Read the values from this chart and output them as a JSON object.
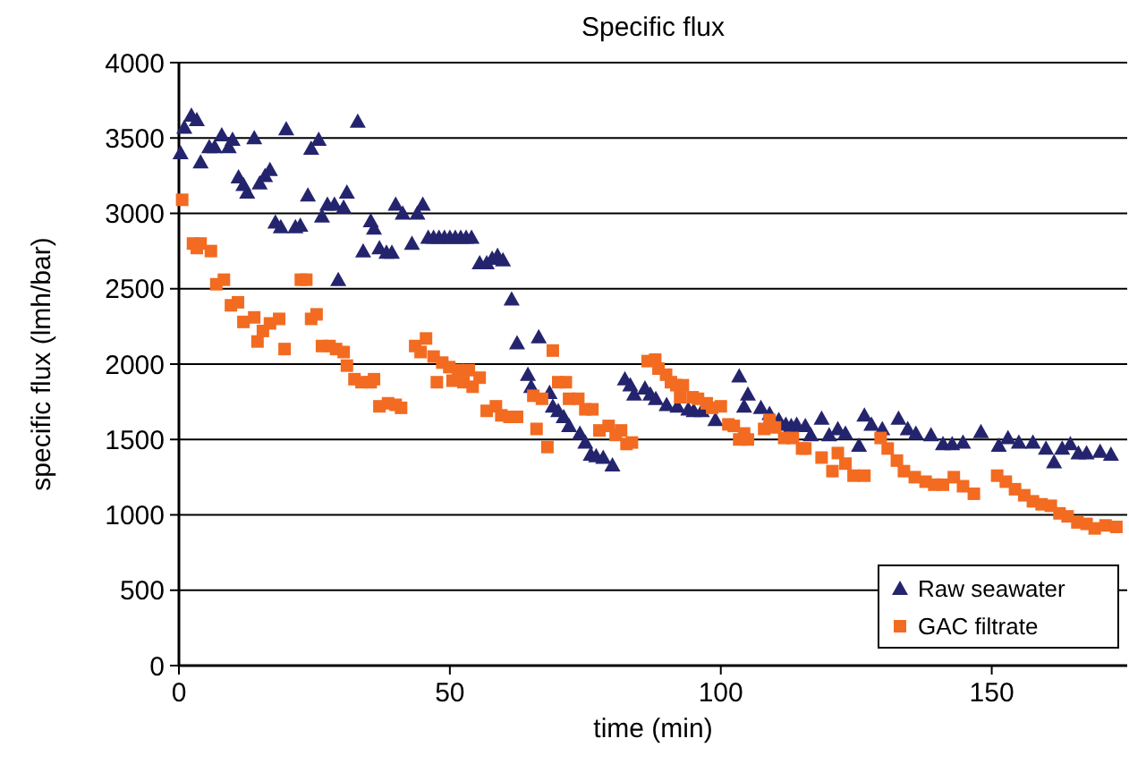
{
  "chart_data": {
    "type": "scatter",
    "title": "Specific flux",
    "xlabel": "time (min)",
    "ylabel": "specific flux (lmh/bar)",
    "xlim": [
      0,
      175
    ],
    "xticks": [
      0,
      50,
      100,
      150
    ],
    "ylim": [
      0,
      4000
    ],
    "yticks": [
      0,
      500,
      1000,
      1500,
      2000,
      2500,
      3000,
      3500,
      4000
    ],
    "grid": "y",
    "legend": "bottom right",
    "series": [
      {
        "name": "Raw seawater",
        "color": "#24246e",
        "marker": "triangle",
        "x": [
          0.3,
          1,
          2.3,
          3.3,
          4,
          5.6,
          6.6,
          7.9,
          9.2,
          9.9,
          11,
          11.9,
          12.6,
          13.9,
          14.9,
          15.9,
          16.8,
          17.8,
          18.8,
          19.8,
          21.5,
          22.4,
          23.8,
          24.4,
          25.8,
          26.4,
          27.4,
          28.7,
          29.4,
          30.4,
          31,
          33,
          34,
          35.4,
          36,
          37,
          38.3,
          39.3,
          40,
          41.3,
          43,
          44,
          45,
          46,
          47,
          48,
          49,
          50,
          51,
          52,
          53,
          54,
          55.5,
          56.8,
          57.8,
          58.8,
          59.8,
          61.4,
          62.4,
          64.4,
          65,
          66.4,
          68.4,
          69,
          70,
          71,
          72,
          74,
          75,
          76,
          77,
          78.3,
          80,
          82.3,
          83.3,
          84,
          86,
          87,
          88,
          90,
          92,
          94,
          95,
          96.5,
          99,
          103.4,
          104.3,
          105,
          107.4,
          109,
          110.7,
          112,
          113,
          114,
          115.6,
          116.6,
          118.6,
          120,
          121.6,
          123,
          125.5,
          126.5,
          127.8,
          129.8,
          132.8,
          134.5,
          136,
          138.8,
          141,
          142.7,
          144.7,
          148,
          151.3,
          153,
          155,
          157.6,
          160,
          161.5,
          163,
          164.5,
          166,
          167.5,
          170,
          172
        ],
        "values": [
          3400,
          3570,
          3650,
          3620,
          3340,
          3440,
          3440,
          3520,
          3440,
          3490,
          3240,
          3190,
          3140,
          3500,
          3200,
          3250,
          3290,
          2940,
          2910,
          3560,
          2910,
          2920,
          3120,
          3430,
          3490,
          2980,
          3060,
          3060,
          2560,
          3040,
          3140,
          3610,
          2750,
          2950,
          2900,
          2770,
          2740,
          2740,
          3060,
          3000,
          2800,
          3000,
          3060,
          2840,
          2840,
          2840,
          2840,
          2840,
          2840,
          2840,
          2840,
          2840,
          2670,
          2670,
          2700,
          2720,
          2690,
          2430,
          2140,
          1930,
          1850,
          2180,
          1810,
          1720,
          1690,
          1650,
          1590,
          1540,
          1480,
          1400,
          1390,
          1380,
          1330,
          1900,
          1860,
          1800,
          1840,
          1800,
          1770,
          1730,
          1720,
          1700,
          1690,
          1690,
          1630,
          1920,
          1720,
          1800,
          1710,
          1670,
          1630,
          1600,
          1590,
          1600,
          1590,
          1530,
          1640,
          1530,
          1570,
          1540,
          1460,
          1660,
          1600,
          1570,
          1640,
          1570,
          1540,
          1530,
          1470,
          1470,
          1480,
          1550,
          1460,
          1510,
          1480,
          1480,
          1440,
          1350,
          1440,
          1470,
          1410,
          1410,
          1420,
          1400
        ]
      },
      {
        "name": "GAC filtrate",
        "color": "#f26b21",
        "marker": "square",
        "x": [
          0.6,
          2.6,
          3.3,
          4,
          5.9,
          6.9,
          8.3,
          9.6,
          10.9,
          11.9,
          13.9,
          14.5,
          15.5,
          16.8,
          18.5,
          19.5,
          22.5,
          23.5,
          24.4,
          25.4,
          26.4,
          27.8,
          29,
          30.4,
          31,
          32.4,
          33.7,
          35.4,
          36,
          37,
          38.6,
          40,
          41,
          43.6,
          44.6,
          45.6,
          47,
          47.6,
          48.6,
          49.9,
          50.5,
          51.5,
          52.5,
          53.5,
          54.2,
          55.5,
          56.8,
          58.5,
          59.5,
          61,
          62.4,
          65.4,
          66,
          67,
          68,
          69,
          70,
          71.4,
          72,
          73.7,
          75,
          76.3,
          77.6,
          79.3,
          80.6,
          81.6,
          82.6,
          83.6,
          86.5,
          87.9,
          88.5,
          89.9,
          90.8,
          91.8,
          92.5,
          93,
          94.8,
          95.8,
          97.4,
          98.4,
          100,
          101.4,
          102.4,
          103.4,
          104.3,
          105,
          108,
          109,
          110,
          111.7,
          113.3,
          115,
          115.6,
          118.6,
          120.6,
          121.6,
          123,
          124.5,
          126.5,
          129.5,
          130.8,
          132.5,
          133.8,
          135.8,
          137.8,
          139.4,
          141,
          143,
          144.7,
          146.7,
          151,
          152.6,
          154.3,
          156,
          157.6,
          159.2,
          160.9,
          162.5,
          164,
          165.8,
          167.5,
          169,
          171,
          173
        ],
        "values": [
          3090,
          2800,
          2770,
          2800,
          2750,
          2530,
          2560,
          2390,
          2410,
          2280,
          2310,
          2150,
          2220,
          2270,
          2300,
          2100,
          2560,
          2560,
          2300,
          2330,
          2120,
          2120,
          2100,
          2080,
          1990,
          1900,
          1880,
          1880,
          1900,
          1720,
          1740,
          1730,
          1710,
          2120,
          2080,
          2170,
          2050,
          1880,
          2010,
          1980,
          1890,
          1960,
          1880,
          1960,
          1850,
          1910,
          1690,
          1720,
          1660,
          1650,
          1650,
          1790,
          1570,
          1770,
          1450,
          2090,
          1880,
          1880,
          1770,
          1770,
          1700,
          1700,
          1560,
          1590,
          1530,
          1560,
          1470,
          1480,
          2020,
          2030,
          1970,
          1930,
          1880,
          1860,
          1780,
          1860,
          1780,
          1770,
          1740,
          1710,
          1720,
          1600,
          1590,
          1500,
          1540,
          1500,
          1570,
          1630,
          1580,
          1510,
          1510,
          1440,
          1440,
          1380,
          1290,
          1410,
          1340,
          1260,
          1260,
          1510,
          1440,
          1360,
          1290,
          1250,
          1220,
          1200,
          1200,
          1250,
          1190,
          1140,
          1260,
          1220,
          1170,
          1130,
          1090,
          1070,
          1060,
          1010,
          990,
          950,
          940,
          910,
          930,
          920
        ]
      }
    ]
  }
}
